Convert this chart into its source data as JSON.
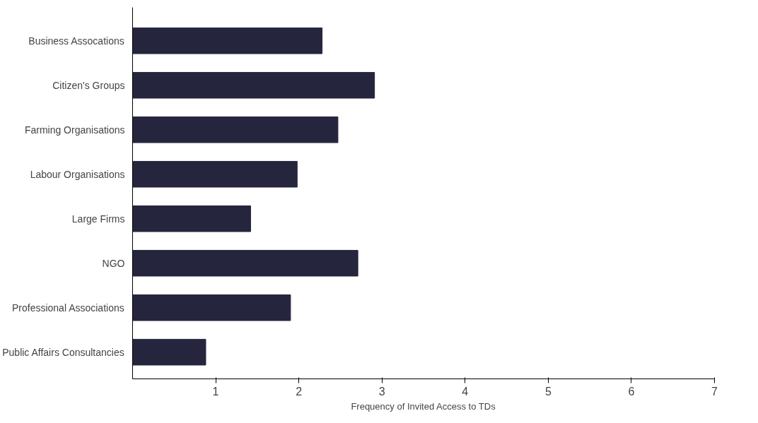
{
  "chart_data": {
    "type": "bar",
    "orientation": "horizontal",
    "xlabel": "Frequency of Invited Access to TDs",
    "categories": [
      "Business Assocations",
      "Citizen's Groups",
      "Farming Organisations",
      "Labour Organisations",
      "Large Firms",
      "NGO",
      "Professional Associations",
      "Public Affairs Consultancies"
    ],
    "values": [
      2.28,
      2.91,
      2.47,
      1.98,
      1.42,
      2.71,
      1.9,
      0.88
    ],
    "color": "#25253d",
    "xlim": [
      0,
      7
    ],
    "xticks": [
      1,
      2,
      3,
      4,
      5,
      6,
      7
    ],
    "grid": false
  }
}
